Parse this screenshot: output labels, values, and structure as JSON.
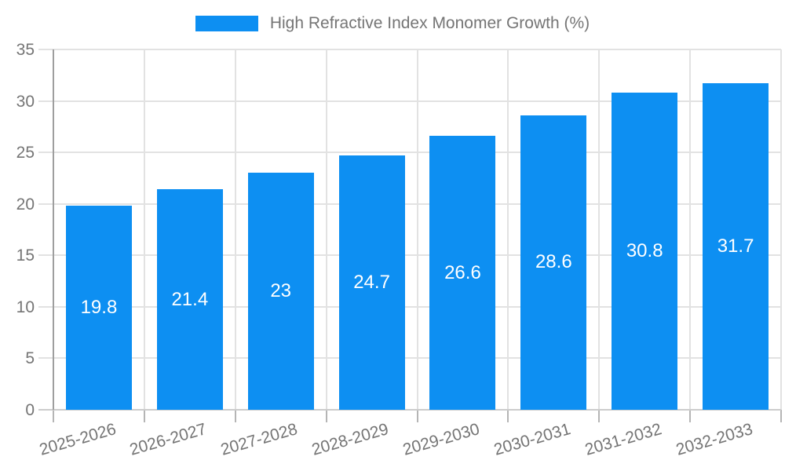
{
  "chart_data": {
    "type": "bar",
    "title": "",
    "legend": {
      "label": "High Refractive Index Monomer Growth (%)",
      "position": "top"
    },
    "categories": [
      "2025-2026",
      "2026-2027",
      "2027-2028",
      "2028-2029",
      "2029-2030",
      "2030-2031",
      "2031-2032",
      "2032-2033"
    ],
    "values": [
      19.8,
      21.4,
      23,
      24.7,
      26.6,
      28.6,
      30.8,
      31.7
    ],
    "value_labels": [
      "19.8",
      "21.4",
      "23",
      "24.7",
      "26.6",
      "28.6",
      "30.8",
      "31.7"
    ],
    "xlabel": "",
    "ylabel": "",
    "ylim": [
      0,
      35
    ],
    "yticks": [
      0,
      5,
      10,
      15,
      20,
      25,
      30,
      35
    ],
    "grid": true,
    "legend_position": "top-center",
    "colors": {
      "bar": "#0d8ff2",
      "bar_value_text": "#ffffff",
      "axis_text": "#757575",
      "gridline": "#e2e2e2",
      "baseline": "#cccccc",
      "axis_line": "#9e9e9e",
      "tick": "#b5b5b5",
      "background": "#ffffff"
    }
  }
}
